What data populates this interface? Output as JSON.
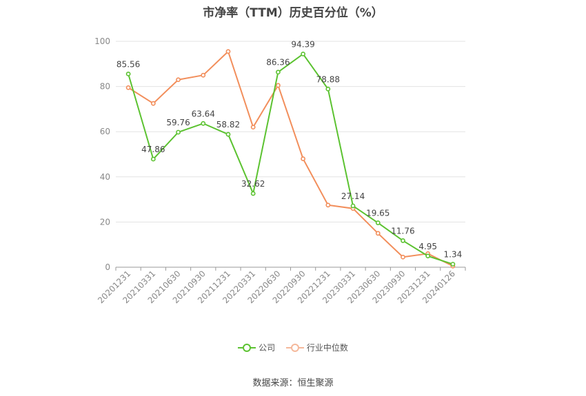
{
  "chart_data": {
    "type": "line",
    "title": "市净率（TTM）历史百分位（%）",
    "categories": [
      "20201231",
      "20210331",
      "20210630",
      "20210930",
      "20211231",
      "20220331",
      "20220630",
      "20220930",
      "20221231",
      "20230331",
      "20230630",
      "20230930",
      "20231231",
      "20240126"
    ],
    "ylim": [
      0,
      100
    ],
    "yticks": [
      0,
      20,
      40,
      60,
      80,
      100
    ],
    "grid": true,
    "legend_position": "bottom",
    "series": [
      {
        "name": "公司",
        "color": "#5bc230",
        "values": [
          85.56,
          47.86,
          59.76,
          63.64,
          58.82,
          32.62,
          86.36,
          94.39,
          78.88,
          27.14,
          19.65,
          11.76,
          4.95,
          1.34
        ],
        "labels": [
          "85.56",
          "47.86",
          "59.76",
          "63.64",
          "58.82",
          "32.62",
          "86.36",
          "94.39",
          "78.88",
          "27.14",
          "19.65",
          "11.76",
          "4.95",
          "1.34"
        ]
      },
      {
        "name": "行业中位数",
        "color": "#f28e5b",
        "values": [
          79.5,
          72.5,
          83,
          85,
          95.5,
          62,
          80.5,
          48,
          27.5,
          26,
          15,
          4.5,
          6,
          0.5
        ]
      }
    ]
  },
  "source": "数据来源：恒生聚源"
}
